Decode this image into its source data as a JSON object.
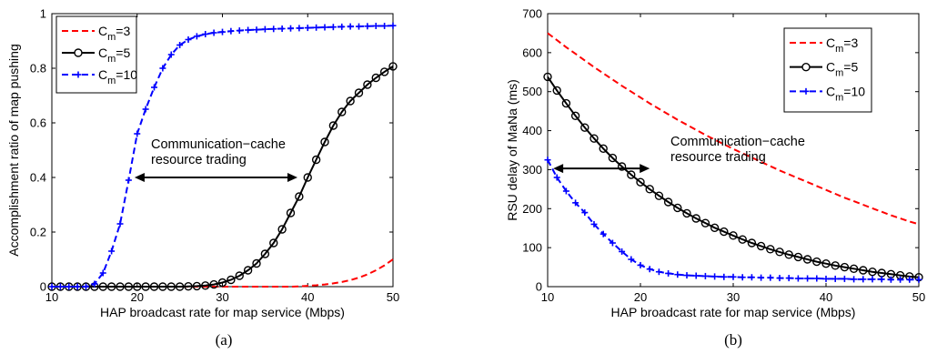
{
  "chart_data": [
    {
      "type": "line",
      "caption": "(a)",
      "xlabel": "HAP broadcast rate for map service (Mbps)",
      "ylabel": "Accomplishment ratio of map pushing",
      "xlim": [
        10,
        50
      ],
      "ylim": [
        0,
        1
      ],
      "xticks": [
        "10",
        "20",
        "30",
        "40",
        "50"
      ],
      "yticks": [
        "0",
        "0.2",
        "0.4",
        "0.6",
        "0.8",
        "1"
      ],
      "grid": false,
      "legend_position": "top-left",
      "annotation": {
        "lines": [
          "Communication−cache",
          "resource trading"
        ],
        "arrow_from": [
          19.7,
          0.4
        ],
        "arrow_to": [
          38.8,
          0.4
        ]
      },
      "x": [
        10,
        11,
        12,
        13,
        14,
        15,
        16,
        17,
        18,
        19,
        20,
        21,
        22,
        23,
        24,
        25,
        26,
        27,
        28,
        29,
        30,
        31,
        32,
        33,
        34,
        35,
        36,
        37,
        38,
        39,
        40,
        41,
        42,
        43,
        44,
        45,
        46,
        47,
        48,
        49,
        50
      ],
      "series": [
        {
          "name_base": "C",
          "name_sub": "m",
          "name_suffix": "=3",
          "color": "#ff0000",
          "style": "dashed",
          "marker": "none",
          "values": [
            0,
            0,
            0,
            0,
            0,
            0,
            0,
            0,
            0,
            0,
            0,
            0,
            0,
            0,
            0,
            0,
            0,
            0,
            0,
            0,
            0,
            0,
            0,
            0,
            0,
            0,
            0,
            0,
            0,
            0.001,
            0.003,
            0.005,
            0.008,
            0.012,
            0.017,
            0.024,
            0.033,
            0.045,
            0.06,
            0.078,
            0.1
          ]
        },
        {
          "name_base": "C",
          "name_sub": "m",
          "name_suffix": "=5",
          "color": "#000000",
          "style": "solid",
          "marker": "circle",
          "values": [
            0,
            0,
            0,
            0,
            0,
            0,
            0,
            0,
            0,
            0,
            0,
            0,
            0,
            0,
            0,
            0,
            0.001,
            0.002,
            0.004,
            0.008,
            0.015,
            0.025,
            0.04,
            0.06,
            0.085,
            0.12,
            0.16,
            0.21,
            0.27,
            0.33,
            0.4,
            0.465,
            0.53,
            0.59,
            0.64,
            0.68,
            0.71,
            0.74,
            0.765,
            0.787,
            0.807
          ]
        },
        {
          "name_base": "C",
          "name_sub": "m",
          "name_suffix": "=10",
          "color": "#0000ff",
          "style": "dashed",
          "marker": "plus",
          "values": [
            0,
            0,
            0,
            0,
            0,
            0.01,
            0.05,
            0.13,
            0.23,
            0.39,
            0.56,
            0.65,
            0.73,
            0.8,
            0.85,
            0.885,
            0.905,
            0.917,
            0.925,
            0.93,
            0.933,
            0.936,
            0.938,
            0.94,
            0.941,
            0.943,
            0.944,
            0.945,
            0.946,
            0.947,
            0.948,
            0.949,
            0.95,
            0.951,
            0.952,
            0.953,
            0.953,
            0.954,
            0.955,
            0.955,
            0.956
          ]
        }
      ]
    },
    {
      "type": "line",
      "caption": "(b)",
      "xlabel": "HAP broadcast rate for map service (Mbps)",
      "ylabel": "RSU delay of MaNa (ms)",
      "xlim": [
        10,
        50
      ],
      "ylim": [
        0,
        700
      ],
      "xticks": [
        "10",
        "20",
        "30",
        "40",
        "50"
      ],
      "yticks": [
        "0",
        "100",
        "200",
        "300",
        "400",
        "500",
        "600",
        "700"
      ],
      "grid": false,
      "legend_position": "top-right",
      "annotation": {
        "lines": [
          "Communication−cache",
          "resource trading"
        ],
        "arrow_from": [
          10.6,
          303
        ],
        "arrow_to": [
          21,
          303
        ]
      },
      "x": [
        10,
        11,
        12,
        13,
        14,
        15,
        16,
        17,
        18,
        19,
        20,
        21,
        22,
        23,
        24,
        25,
        26,
        27,
        28,
        29,
        30,
        31,
        32,
        33,
        34,
        35,
        36,
        37,
        38,
        39,
        40,
        41,
        42,
        43,
        44,
        45,
        46,
        47,
        48,
        49,
        50
      ],
      "series": [
        {
          "name_base": "C",
          "name_sub": "m",
          "name_suffix": "=3",
          "color": "#ff0000",
          "style": "dashed",
          "marker": "none",
          "values": [
            650,
            632,
            614,
            597,
            580,
            563,
            547,
            531,
            515,
            500,
            485,
            470,
            456,
            442,
            428,
            415,
            402,
            389,
            377,
            365,
            353,
            342,
            331,
            320,
            309,
            298,
            288,
            278,
            268,
            258,
            248,
            238,
            228,
            219,
            210,
            201,
            192,
            183,
            175,
            167,
            160
          ]
        },
        {
          "name_base": "C",
          "name_sub": "m",
          "name_suffix": "=5",
          "color": "#000000",
          "style": "solid",
          "marker": "circle",
          "values": [
            538,
            503,
            470,
            438,
            408,
            380,
            354,
            330,
            308,
            287,
            268,
            250,
            233,
            217,
            202,
            188,
            175,
            163,
            151,
            141,
            131,
            121,
            112,
            104,
            96,
            89,
            82,
            76,
            70,
            64,
            59,
            54,
            50,
            46,
            42,
            38,
            35,
            32,
            29,
            26,
            24
          ]
        },
        {
          "name_base": "C",
          "name_sub": "m",
          "name_suffix": "=10",
          "color": "#0000ff",
          "style": "dashed",
          "marker": "plus",
          "values": [
            325,
            280,
            245,
            215,
            190,
            160,
            135,
            112,
            90,
            70,
            55,
            45,
            38,
            34,
            31,
            29,
            28,
            27,
            26,
            25,
            25,
            24,
            24,
            23,
            23,
            22,
            22,
            21,
            21,
            21,
            20,
            20,
            20,
            19,
            19,
            19,
            19,
            18,
            18,
            18,
            18
          ]
        }
      ]
    }
  ]
}
